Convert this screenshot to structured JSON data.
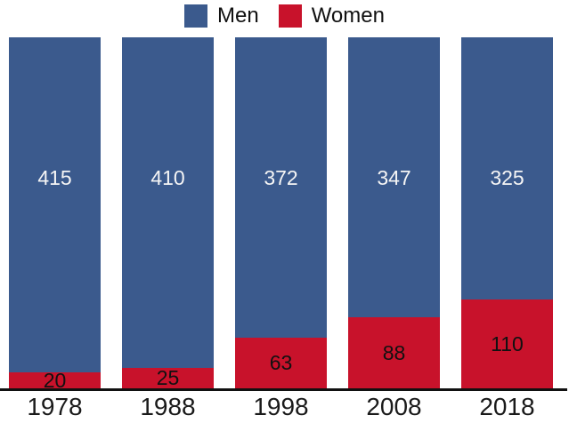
{
  "chart_data": {
    "type": "bar",
    "stacked": true,
    "title": "",
    "xlabel": "",
    "ylabel": "",
    "grid": false,
    "legend_position": "top",
    "categories": [
      "1978",
      "1988",
      "1998",
      "2008",
      "2018"
    ],
    "series": [
      {
        "name": "Men",
        "color": "#3B5A8D",
        "label_color": "#f5f5f5",
        "values": [
          415,
          410,
          372,
          347,
          325
        ]
      },
      {
        "name": "Women",
        "color": "#C8122B",
        "label_color": "#111111",
        "values": [
          20,
          25,
          63,
          88,
          110
        ]
      }
    ],
    "total_per_category": 435,
    "axis_line_color": "#111111",
    "background_color": "#ffffff"
  }
}
